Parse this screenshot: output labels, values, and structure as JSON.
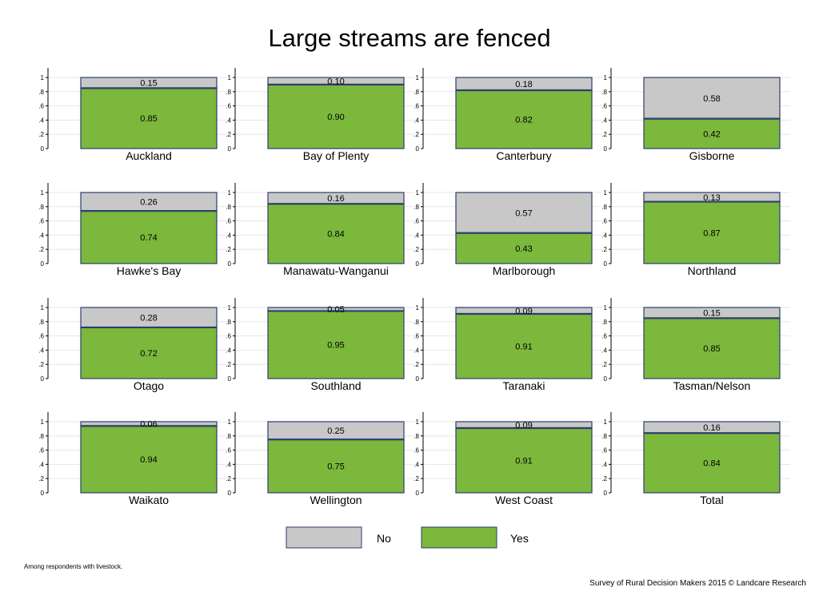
{
  "chart_data": {
    "type": "bar",
    "title": "Large streams are fenced",
    "layout": "small-multiples-stacked",
    "ylim": [
      0,
      1
    ],
    "yticks": [
      "0",
      ".2",
      ".4",
      ".6",
      ".8",
      "1"
    ],
    "grid": true,
    "legend_placement": "bottom-center",
    "legend": [
      {
        "label": "No",
        "color": "#c8c8c8"
      },
      {
        "label": "Yes",
        "color": "#7cb83c"
      }
    ],
    "colors": {
      "no": "#c8c8c8",
      "yes": "#7cb83c",
      "edge": "#2c3e6e",
      "grid": "#e6e6e6"
    },
    "panels": [
      {
        "region": "Auckland",
        "no": 0.15,
        "yes": 0.85,
        "no_label": "0.15",
        "yes_label": "0.85"
      },
      {
        "region": "Bay of Plenty",
        "no": 0.1,
        "yes": 0.9,
        "no_label": "0.10",
        "yes_label": "0.90"
      },
      {
        "region": "Canterbury",
        "no": 0.18,
        "yes": 0.82,
        "no_label": "0.18",
        "yes_label": "0.82"
      },
      {
        "region": "Gisborne",
        "no": 0.58,
        "yes": 0.42,
        "no_label": "0.58",
        "yes_label": "0.42"
      },
      {
        "region": "Hawke's Bay",
        "no": 0.26,
        "yes": 0.74,
        "no_label": "0.26",
        "yes_label": "0.74"
      },
      {
        "region": "Manawatu-Wanganui",
        "no": 0.16,
        "yes": 0.84,
        "no_label": "0.16",
        "yes_label": "0.84"
      },
      {
        "region": "Marlborough",
        "no": 0.57,
        "yes": 0.43,
        "no_label": "0.57",
        "yes_label": "0.43"
      },
      {
        "region": "Northland",
        "no": 0.13,
        "yes": 0.87,
        "no_label": "0.13",
        "yes_label": "0.87"
      },
      {
        "region": "Otago",
        "no": 0.28,
        "yes": 0.72,
        "no_label": "0.28",
        "yes_label": "0.72"
      },
      {
        "region": "Southland",
        "no": 0.05,
        "yes": 0.95,
        "no_label": "0.05",
        "yes_label": "0.95"
      },
      {
        "region": "Taranaki",
        "no": 0.09,
        "yes": 0.91,
        "no_label": "0.09",
        "yes_label": "0.91"
      },
      {
        "region": "Tasman/Nelson",
        "no": 0.15,
        "yes": 0.85,
        "no_label": "0.15",
        "yes_label": "0.85"
      },
      {
        "region": "Waikato",
        "no": 0.06,
        "yes": 0.94,
        "no_label": "0.06",
        "yes_label": "0.94"
      },
      {
        "region": "Wellington",
        "no": 0.25,
        "yes": 0.75,
        "no_label": "0.25",
        "yes_label": "0.75"
      },
      {
        "region": "West Coast",
        "no": 0.09,
        "yes": 0.91,
        "no_label": "0.09",
        "yes_label": "0.91"
      },
      {
        "region": "Total",
        "no": 0.16,
        "yes": 0.84,
        "no_label": "0.16",
        "yes_label": "0.84"
      }
    ]
  },
  "note": "Among respondents with livestock.",
  "footer": "Survey of Rural Decision Makers 2015 © Landcare Research"
}
